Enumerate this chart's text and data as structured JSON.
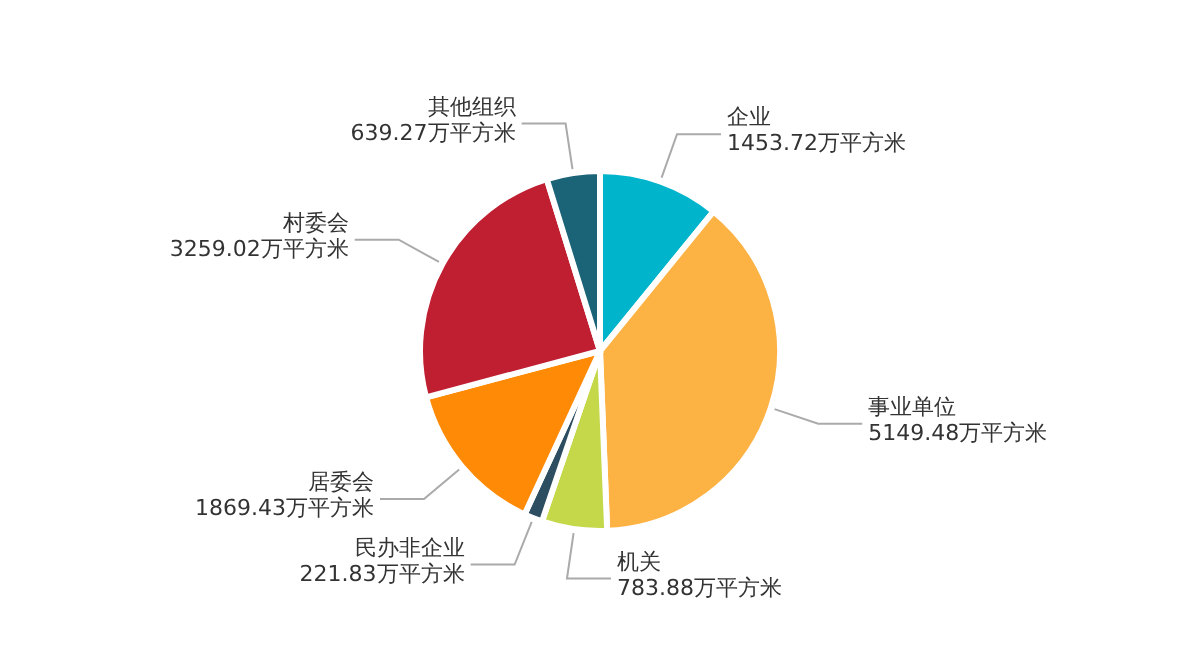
{
  "chart_data": {
    "type": "pie",
    "categories": [
      "企业",
      "事业单位",
      "机关",
      "民办非企业",
      "居委会",
      "村委会",
      "其他组织"
    ],
    "values": [
      1453.72,
      5149.48,
      783.88,
      221.83,
      1869.43,
      3259.02,
      639.27
    ],
    "value_labels": [
      "1453.72万平方米",
      "5149.48万平方米",
      "783.88万平方米",
      "221.83万平方米",
      "1869.43万平方米",
      "3259.02万平方米",
      "639.27万平方米"
    ],
    "colors": [
      "#00b4cc",
      "#fdb244",
      "#c4d84a",
      "#2d4d60",
      "#ff8a06",
      "#c01f32",
      "#1b6478"
    ]
  }
}
